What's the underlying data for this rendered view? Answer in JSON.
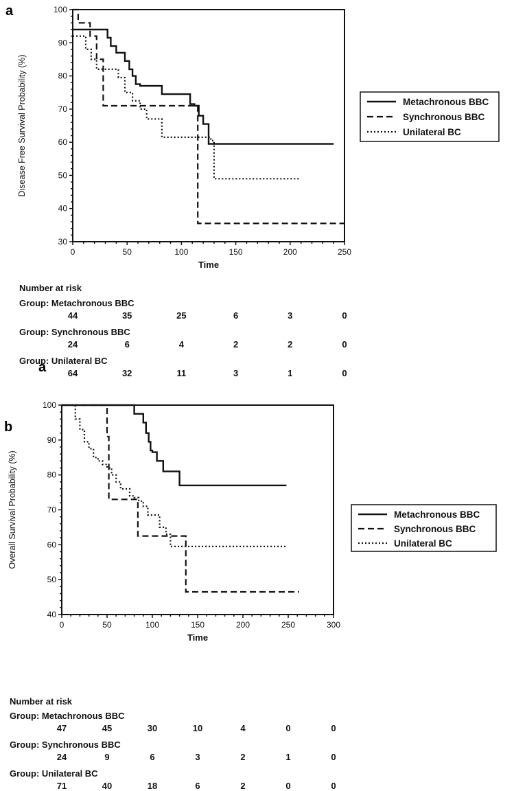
{
  "chart_data": [
    {
      "type": "line",
      "panel_label": "a",
      "xlabel": "Time",
      "ylabel": "Disease Free Survival Probability (%)",
      "xlim": [
        0,
        250
      ],
      "ylim": [
        30,
        100
      ],
      "xticks": [
        0,
        50,
        100,
        150,
        200,
        250
      ],
      "yticks": [
        30,
        40,
        50,
        60,
        70,
        80,
        90,
        100
      ],
      "legend_position": "right",
      "series": [
        {
          "name": "Metachronous BBC",
          "style": "solid",
          "x": [
            0,
            30,
            32,
            35,
            40,
            48,
            52,
            55,
            58,
            62,
            82,
            108,
            112,
            116,
            120,
            125,
            240
          ],
          "y": [
            94,
            94,
            91.5,
            89,
            87,
            84.5,
            82,
            80,
            77.5,
            77,
            74.5,
            71.5,
            71,
            68,
            65.5,
            59.5,
            59.5
          ]
        },
        {
          "name": "Synchronous BBC",
          "style": "dashed",
          "x": [
            0,
            2,
            5,
            16,
            22,
            28,
            110,
            115,
            250
          ],
          "y": [
            100,
            100,
            96,
            92,
            85,
            71,
            71,
            35.5,
            35.5
          ]
        },
        {
          "name": "Unilateral BC",
          "style": "dotted",
          "x": [
            0,
            8,
            12,
            17,
            22,
            28,
            42,
            48,
            55,
            62,
            68,
            82,
            120,
            127,
            130,
            208
          ],
          "y": [
            92,
            92,
            88,
            85,
            82,
            82,
            79.5,
            75,
            72.5,
            70,
            67,
            61.5,
            61.5,
            60.5,
            49,
            49
          ]
        }
      ],
      "risk_table": {
        "title": "Number at risk",
        "groups": [
          {
            "label": "Group: Metachronous BBC",
            "values": [
              "44",
              "35",
              "25",
              "6",
              "3",
              "0"
            ]
          },
          {
            "label": "Group: Synchronous BBC",
            "values": [
              "24",
              "6",
              "4",
              "2",
              "2",
              "0"
            ]
          },
          {
            "label": "Group: Unilateral BC",
            "values": [
              "64",
              "32",
              "11",
              "3",
              "1",
              "0"
            ]
          }
        ],
        "stray_mark": "a"
      }
    },
    {
      "type": "line",
      "panel_label": "b",
      "xlabel": "Time",
      "ylabel": "Overall Survival Probability (%)",
      "xlim": [
        0,
        300
      ],
      "ylim": [
        40,
        100
      ],
      "xticks": [
        0,
        50,
        100,
        150,
        200,
        250,
        300
      ],
      "yticks": [
        40,
        50,
        60,
        70,
        80,
        90,
        100
      ],
      "legend_position": "right",
      "series": [
        {
          "name": "Metachronous BBC",
          "style": "solid",
          "x": [
            0,
            72,
            80,
            90,
            93,
            96,
            98,
            100,
            105,
            112,
            115,
            130,
            248
          ],
          "y": [
            100,
            100,
            97.5,
            95,
            92,
            89.5,
            87,
            86.5,
            84,
            81,
            81,
            77,
            77
          ]
        },
        {
          "name": "Synchronous BBC",
          "style": "dashed",
          "x": [
            0,
            48,
            50,
            52,
            82,
            84,
            135,
            137,
            262
          ],
          "y": [
            100,
            100,
            91,
            73,
            73,
            62.5,
            62.5,
            46.5,
            46.5
          ]
        },
        {
          "name": "Unilateral BC",
          "style": "dotted",
          "x": [
            0,
            10,
            15,
            20,
            25,
            30,
            35,
            40,
            45,
            50,
            55,
            60,
            65,
            75,
            80,
            85,
            90,
            95,
            100,
            108,
            115,
            120,
            247
          ],
          "y": [
            100,
            100,
            96,
            93,
            89.5,
            87.5,
            85,
            84,
            83,
            82,
            80,
            78,
            76,
            74,
            73.5,
            72.5,
            71,
            68.5,
            68.5,
            65,
            63,
            59.5,
            59.5
          ]
        }
      ],
      "risk_table": {
        "title": "Number at risk",
        "groups": [
          {
            "label": "Group: Metachronous BBC",
            "values": [
              "47",
              "45",
              "30",
              "10",
              "4",
              "0",
              "0"
            ]
          },
          {
            "label": "Group: Synchronous BBC",
            "values": [
              "24",
              "9",
              "6",
              "3",
              "2",
              "1",
              "0"
            ]
          },
          {
            "label": "Group: Unilateral BC",
            "values": [
              "71",
              "40",
              "18",
              "6",
              "2",
              "0",
              "0"
            ]
          }
        ]
      }
    }
  ]
}
